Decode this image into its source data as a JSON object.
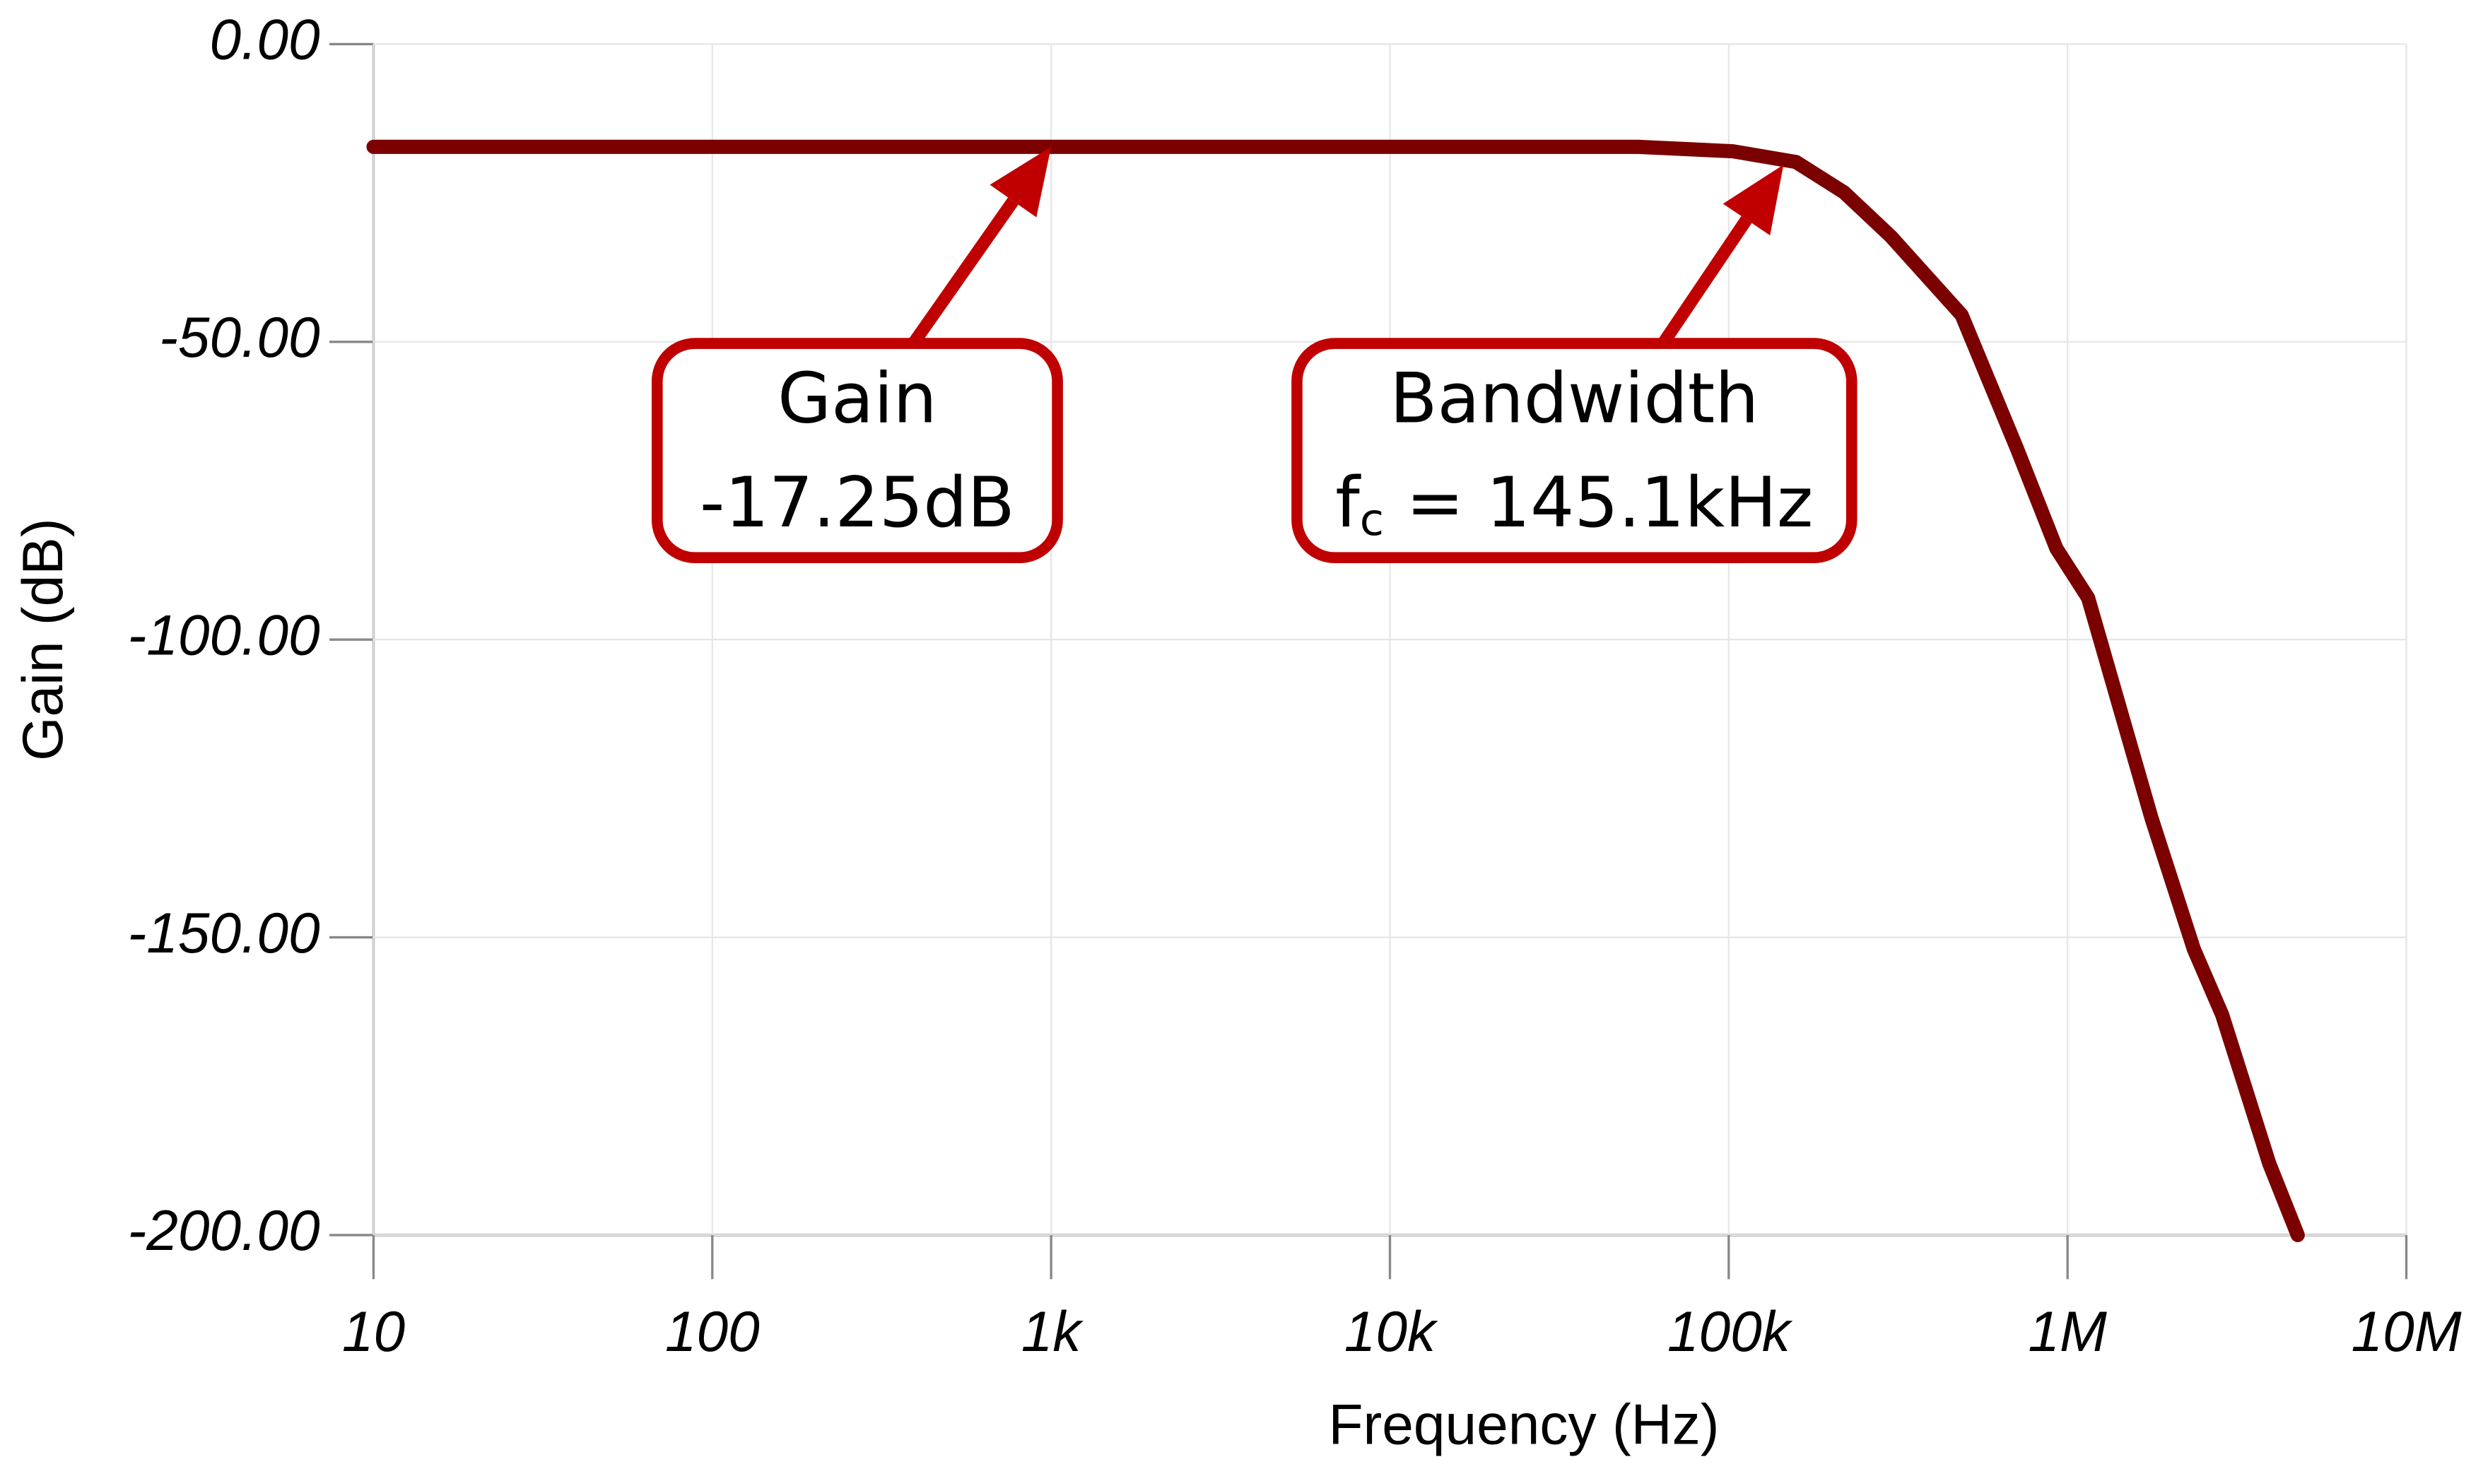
{
  "chart_data": {
    "type": "line",
    "xlabel": "Frequency (Hz)",
    "ylabel": "Gain (dB)",
    "xscale": "log",
    "xlim": [
      10,
      10000000
    ],
    "ylim": [
      -200,
      0
    ],
    "xticks": [
      {
        "value": 10,
        "label": "10"
      },
      {
        "value": 100,
        "label": "100"
      },
      {
        "value": 1000,
        "label": "1k"
      },
      {
        "value": 10000,
        "label": "10k"
      },
      {
        "value": 100000,
        "label": "100k"
      },
      {
        "value": 1000000,
        "label": "1M"
      },
      {
        "value": 10000000,
        "label": "10M"
      }
    ],
    "yticks": [
      {
        "value": 0,
        "label": "0.00"
      },
      {
        "value": -50,
        "label": "-50.00"
      },
      {
        "value": -100,
        "label": "-100.00"
      },
      {
        "value": -150,
        "label": "-150.00"
      },
      {
        "value": -200,
        "label": "-200.00"
      }
    ],
    "grid": true,
    "series": [
      {
        "color": "#7b0000",
        "x": [
          10,
          54000,
          103000,
          158000,
          219000,
          301000,
          487000,
          710000,
          927000,
          1150000,
          1770000,
          2360000,
          2860000,
          3940000,
          4780000
        ],
        "values": [
          -17.25,
          -17.25,
          -18,
          -19.8,
          -24.9,
          -32.3,
          -45.5,
          -68,
          -84.7,
          -93,
          -130,
          -152,
          -163,
          -188,
          -200
        ]
      }
    ],
    "annotations": [
      {
        "title": "Gain",
        "text": "-17.25dB",
        "point": [
          1000,
          -17.25
        ]
      },
      {
        "title": "Bandwidth",
        "text_parts": [
          "f",
          "c",
          " = 145.1kHz"
        ],
        "point": [
          145100,
          -20.25
        ]
      }
    ],
    "annotation_color": "#c00000"
  }
}
